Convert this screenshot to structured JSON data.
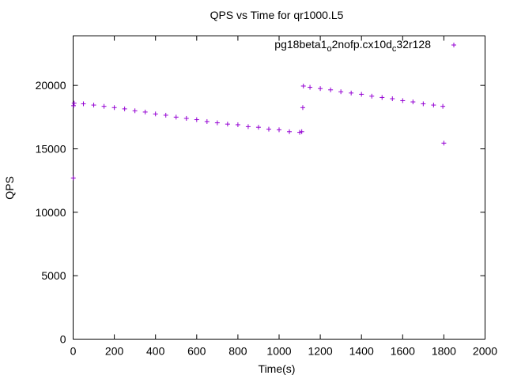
{
  "chart_data": {
    "type": "scatter",
    "title": "QPS vs Time for qr1000.L5",
    "xlabel": "Time(s)",
    "ylabel": "QPS",
    "xlim": [
      0,
      2000
    ],
    "ylim": [
      0,
      23900
    ],
    "xticks": [
      0,
      200,
      400,
      600,
      800,
      1000,
      1200,
      1400,
      1600,
      1800,
      2000
    ],
    "yticks": [
      0,
      5000,
      10000,
      15000,
      20000
    ],
    "xtick_labels": [
      "0",
      "200",
      "400",
      "600",
      "800",
      "1000",
      "1200",
      "1400",
      "1600",
      "1800",
      "2000"
    ],
    "ytick_labels": [
      "0",
      "5000",
      "10000",
      "15000",
      "20000"
    ],
    "grid": false,
    "legend_position": "top-right",
    "marker": "plus",
    "series": [
      {
        "name": "pg18beta1_o2nofp.cx10d_c32r128",
        "name_parts": [
          "pg18beta1",
          "o",
          "2nofp.cx10d",
          "c",
          "32r128"
        ],
        "color": "#9400d3",
        "points": [
          [
            1,
            12700
          ],
          [
            2,
            18400
          ],
          [
            5,
            18600
          ],
          [
            50,
            18550
          ],
          [
            100,
            18450
          ],
          [
            150,
            18350
          ],
          [
            200,
            18250
          ],
          [
            250,
            18150
          ],
          [
            300,
            18000
          ],
          [
            350,
            17900
          ],
          [
            400,
            17750
          ],
          [
            450,
            17650
          ],
          [
            500,
            17500
          ],
          [
            550,
            17400
          ],
          [
            600,
            17300
          ],
          [
            650,
            17150
          ],
          [
            700,
            17050
          ],
          [
            750,
            16950
          ],
          [
            800,
            16900
          ],
          [
            850,
            16750
          ],
          [
            900,
            16700
          ],
          [
            950,
            16550
          ],
          [
            1000,
            16500
          ],
          [
            1050,
            16350
          ],
          [
            1100,
            16300
          ],
          [
            1110,
            16350
          ],
          [
            1115,
            18250
          ],
          [
            1118,
            19950
          ],
          [
            1150,
            19850
          ],
          [
            1200,
            19750
          ],
          [
            1250,
            19650
          ],
          [
            1300,
            19500
          ],
          [
            1350,
            19400
          ],
          [
            1400,
            19300
          ],
          [
            1450,
            19150
          ],
          [
            1500,
            19050
          ],
          [
            1550,
            18950
          ],
          [
            1600,
            18800
          ],
          [
            1650,
            18700
          ],
          [
            1700,
            18550
          ],
          [
            1750,
            18450
          ],
          [
            1795,
            18350
          ],
          [
            1800,
            15450
          ]
        ]
      }
    ]
  }
}
